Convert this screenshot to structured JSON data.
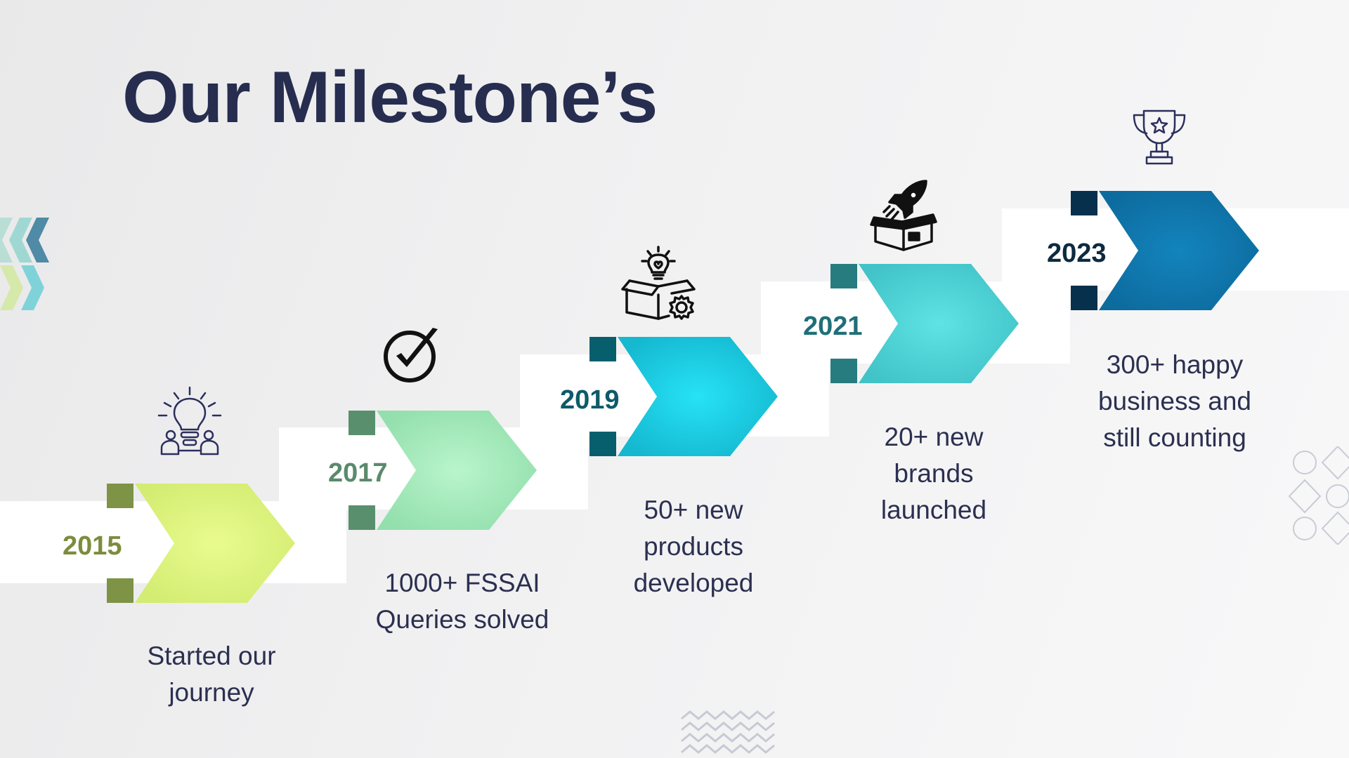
{
  "page": {
    "title": "Our Milestone’s"
  },
  "milestones": [
    {
      "year": "2015",
      "description": "Started our\njourney",
      "icon": "lightbulb-people-icon",
      "colors": {
        "light": "#e9fb8e",
        "mid": "#d3ec72",
        "dark": "#7e9346",
        "year": "#7c8c3e"
      }
    },
    {
      "year": "2017",
      "description": "1000+ FSSAI\nQueries solved",
      "icon": "checkmark-circle-icon",
      "colors": {
        "light": "#b9f5cb",
        "mid": "#93dfad",
        "dark": "#5a8f6d",
        "year": "#5a8a6c"
      }
    },
    {
      "year": "2019",
      "description": "50+ new\nproducts\ndeveloped",
      "icon": "box-lightbulb-gear-icon",
      "colors": {
        "light": "#27e2f6",
        "mid": "#14b8cf",
        "dark": "#075f6d",
        "year": "#0e5a68"
      }
    },
    {
      "year": "2021",
      "description": "20+ new\nbrands\nlaunched",
      "icon": "rocket-box-icon",
      "colors": {
        "light": "#5fe3e3",
        "mid": "#41c3c8",
        "dark": "#277c7f",
        "year": "#1f6f77"
      }
    },
    {
      "year": "2023",
      "description": "300+ happy\nbusiness and\nstill counting",
      "icon": "trophy-icon",
      "colors": {
        "light": "#1384bd",
        "mid": "#0d6b9e",
        "dark": "#07304c",
        "year": "#0d2a40"
      }
    }
  ]
}
